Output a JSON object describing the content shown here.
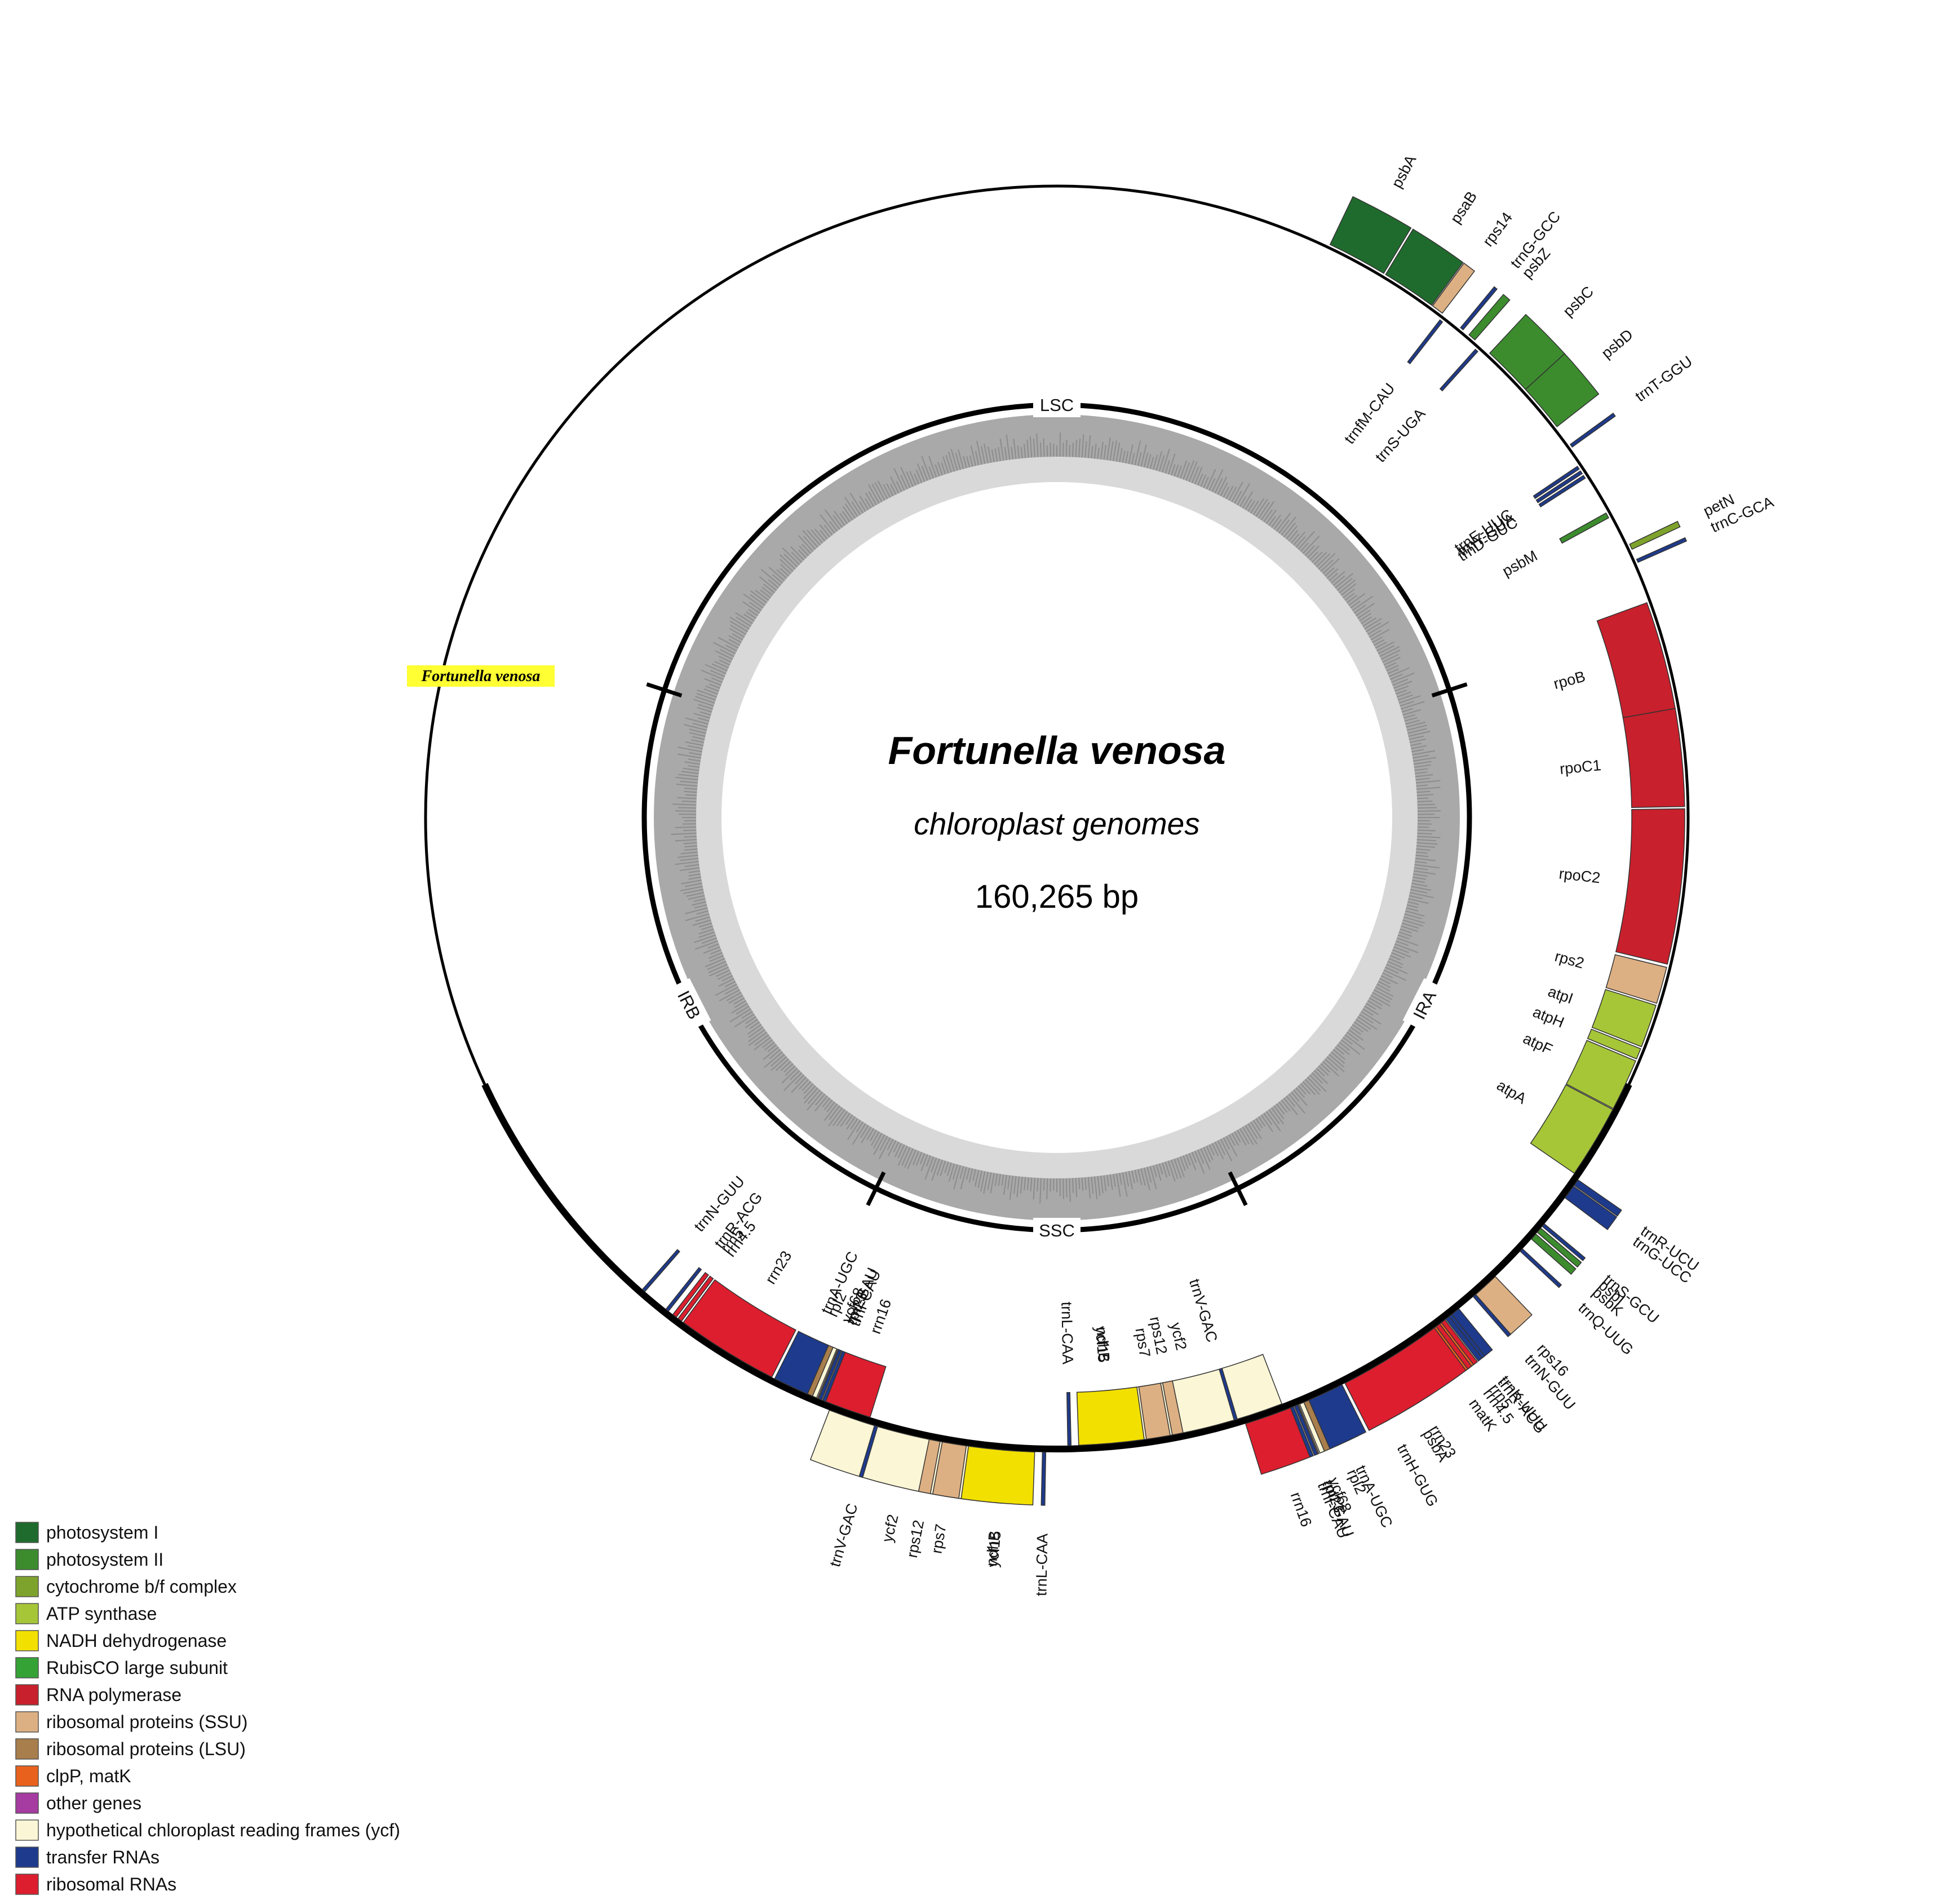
{
  "title": {
    "species": "Fortunella venosa",
    "subtitle": "chloroplast genomes",
    "length": "160,265 bp"
  },
  "callout": "Fortunella venosa",
  "colors": {
    "photosystem_I": "#1f6b2d",
    "photosystem_II": "#3c8c2e",
    "cytochrome": "#7ea32d",
    "atp": "#a6c638",
    "ndh": "#f2e000",
    "rubisco": "#35a235",
    "rnapol": "#c8202c",
    "ssu": "#ddb083",
    "lsu": "#a87e4c",
    "clpp": "#e9621d",
    "other": "#a63ba1",
    "ycf": "#fbf6d6",
    "trna": "#1e3a8c",
    "rrna": "#dc1e2e",
    "highlight": "#ffff33"
  },
  "regions": [
    {
      "id": "LSC",
      "label": "LSC",
      "angle": 0
    },
    {
      "id": "IRA",
      "label": "IRA",
      "angle": 117
    },
    {
      "id": "SSC",
      "label": "SSC",
      "angle": 180
    },
    {
      "id": "IRB",
      "label": "IRB",
      "angle": 243
    }
  ],
  "legend": [
    {
      "label": "photosystem I",
      "color": "#1f6b2d"
    },
    {
      "label": "photosystem II",
      "color": "#3c8c2e"
    },
    {
      "label": "cytochrome b/f complex",
      "color": "#7ea32d"
    },
    {
      "label": "ATP synthase",
      "color": "#a6c638"
    },
    {
      "label": "NADH dehydrogenase",
      "color": "#f2e000"
    },
    {
      "label": "RubisCO large subunit",
      "color": "#35a235"
    },
    {
      "label": "RNA polymerase",
      "color": "#c8202c"
    },
    {
      "label": "ribosomal proteins (SSU)",
      "color": "#ddb083"
    },
    {
      "label": "ribosomal proteins (LSU)",
      "color": "#a87e4c"
    },
    {
      "label": "clpP, matK",
      "color": "#e9621d"
    },
    {
      "label": "other genes",
      "color": "#a63ba1"
    },
    {
      "label": "hypothetical chloroplast reading frames (ycf)",
      "color": "#fbf6d6"
    },
    {
      "label": "transfer RNAs",
      "color": "#1e3a8c"
    },
    {
      "label": "ribosomal RNAs",
      "color": "#dc1e2e"
    }
  ],
  "genes": [
    {
      "name": "psbA",
      "start": 25.5,
      "end": 31.0,
      "strand": "out",
      "cat": "photosystem_I"
    },
    {
      "name": "psaB",
      "start": 31.2,
      "end": 36.2,
      "strand": "out",
      "cat": "photosystem_I"
    },
    {
      "name": "rps14",
      "start": 36.3,
      "end": 37.4,
      "strand": "out",
      "cat": "ssu"
    },
    {
      "name": "trnfM-CAU",
      "start": 37.6,
      "end": 37.9,
      "strand": "in",
      "cat": "trna"
    },
    {
      "name": "trnG-GCC",
      "start": 39.5,
      "end": 39.8,
      "strand": "out",
      "cat": "trna"
    },
    {
      "name": "psbZ",
      "start": 40.5,
      "end": 41.2,
      "strand": "out",
      "cat": "photosystem_II"
    },
    {
      "name": "trnS-UGA",
      "start": 41.8,
      "end": 42.1,
      "strand": "in",
      "cat": "trna"
    },
    {
      "name": "psbC",
      "start": 43.0,
      "end": 47.6,
      "strand": "out",
      "cat": "photosystem_II"
    },
    {
      "name": "psbD",
      "start": 47.6,
      "end": 52.0,
      "strand": "out",
      "cat": "photosystem_II"
    },
    {
      "name": "trnT-GGU",
      "start": 54.0,
      "end": 54.3,
      "strand": "out",
      "cat": "trna"
    },
    {
      "name": "trnE-UUC",
      "start": 56.0,
      "end": 56.3,
      "strand": "in",
      "cat": "trna"
    },
    {
      "name": "trnY-GUA",
      "start": 56.5,
      "end": 56.8,
      "strand": "in",
      "cat": "trna"
    },
    {
      "name": "trnD-GUC",
      "start": 57.0,
      "end": 57.3,
      "strand": "in",
      "cat": "trna"
    },
    {
      "name": "psbM",
      "start": 61.0,
      "end": 61.5,
      "strand": "in",
      "cat": "photosystem_II"
    },
    {
      "name": "petN",
      "start": 64.5,
      "end": 65.0,
      "strand": "out",
      "cat": "cytochrome"
    },
    {
      "name": "trnC-GCA",
      "start": 66.0,
      "end": 66.3,
      "strand": "out",
      "cat": "trna"
    },
    {
      "name": "rpoB",
      "start": 70.0,
      "end": 80.0,
      "strand": "in",
      "cat": "rnapol"
    },
    {
      "name": "rpoC1",
      "start": 80.0,
      "end": 89.0,
      "strand": "in",
      "cat": "rnapol"
    },
    {
      "name": "rpoC2",
      "start": 89.2,
      "end": 103.5,
      "strand": "in",
      "cat": "rnapol"
    },
    {
      "name": "rps2",
      "start": 103.8,
      "end": 107.2,
      "strand": "in",
      "cat": "ssu"
    },
    {
      "name": "atpI",
      "start": 107.4,
      "end": 111.4,
      "strand": "in",
      "cat": "atp"
    },
    {
      "name": "atpH",
      "start": 111.6,
      "end": 112.6,
      "strand": "in",
      "cat": "atp"
    },
    {
      "name": "atpF",
      "start": 112.8,
      "end": 117.6,
      "strand": "in",
      "cat": "atp"
    },
    {
      "name": "atpA",
      "start": 117.7,
      "end": 124.5,
      "strand": "in",
      "cat": "atp"
    },
    {
      "name": "trnR-UCU",
      "start": 124.8,
      "end": 125.4,
      "strand": "out",
      "cat": "trna"
    },
    {
      "name": "trnG-UCC",
      "start": 125.5,
      "end": 126.8,
      "strand": "out",
      "cat": "trna"
    },
    {
      "name": "trnS-GCU",
      "start": 129.8,
      "end": 130.1,
      "strand": "out",
      "cat": "trna"
    },
    {
      "name": "psbI",
      "start": 130.3,
      "end": 130.8,
      "strand": "out",
      "cat": "photosystem_II"
    },
    {
      "name": "psbK",
      "start": 131.0,
      "end": 131.6,
      "strand": "out",
      "cat": "photosystem_II"
    },
    {
      "name": "trnQ-UUG",
      "start": 132.8,
      "end": 133.1,
      "strand": "out",
      "cat": "trna"
    },
    {
      "name": "rps16",
      "start": 136.3,
      "end": 138.8,
      "strand": "out",
      "cat": "ssu"
    },
    {
      "name": "trnK-UUU",
      "start": 140.7,
      "end": 142.2,
      "strand": "out",
      "cat": "trna"
    },
    {
      "name": "matK",
      "start": 142.4,
      "end": 146.6,
      "strand": "out",
      "cat": "clpp"
    },
    {
      "name": "psbA",
      "start": 147.2,
      "end": 150.6,
      "strand": "out",
      "cat": "photosystem_II"
    },
    {
      "name": "trnH-GUG",
      "start": 151.1,
      "end": 151.4,
      "strand": "out",
      "cat": "trna"
    },
    {
      "name": "rpl2",
      "start": 154.0,
      "end": 157.4,
      "strand": "out",
      "cat": "lsu"
    },
    {
      "name": "rpl23",
      "start": 157.6,
      "end": 158.0,
      "strand": "out",
      "cat": "lsu"
    },
    {
      "name": "trnI-CAU",
      "start": 158.1,
      "end": 158.4,
      "strand": "out",
      "cat": "trna"
    },
    {
      "name": "ycf2",
      "start": 159.0,
      "end": 174.6,
      "strand": "in",
      "cat": "ycf"
    },
    {
      "name": "ycf15",
      "start": 174.8,
      "end": 175.4,
      "strand": "in",
      "cat": "ycf"
    },
    {
      "name": "trnL-CAA",
      "start": 181.0,
      "end": 181.3,
      "strand": "out",
      "cat": "trna"
    },
    {
      "name": "ndhB",
      "start": 182.0,
      "end": 188.0,
      "strand": "out",
      "cat": "ndh"
    },
    {
      "name": "rps7",
      "start": 188.2,
      "end": 190.4,
      "strand": "out",
      "cat": "ssu"
    },
    {
      "name": "rps12",
      "start": 190.6,
      "end": 191.6,
      "strand": "out",
      "cat": "ssu"
    },
    {
      "name": "trnV-GAC",
      "start": 196.4,
      "end": 196.7,
      "strand": "out",
      "cat": "trna"
    },
    {
      "name": "rrn16",
      "start": 197.3,
      "end": 201.6,
      "strand": "in",
      "cat": "rrna"
    },
    {
      "name": "trnI-GAU",
      "start": 202.0,
      "end": 202.3,
      "strand": "in",
      "cat": "trna"
    },
    {
      "name": "ycf68",
      "start": 202.5,
      "end": 202.9,
      "strand": "in",
      "cat": "ycf"
    },
    {
      "name": "trnA-UGC",
      "start": 203.4,
      "end": 206.7,
      "strand": "in",
      "cat": "trna"
    },
    {
      "name": "rrn23",
      "start": 207.0,
      "end": 216.5,
      "strand": "in",
      "cat": "rrna"
    },
    {
      "name": "rrn4.5",
      "start": 216.7,
      "end": 217.1,
      "strand": "in",
      "cat": "rrna"
    },
    {
      "name": "rrn5",
      "start": 217.3,
      "end": 217.7,
      "strand": "in",
      "cat": "rrna"
    },
    {
      "name": "trnR-ACG",
      "start": 218.2,
      "end": 218.5,
      "strand": "in",
      "cat": "trna"
    },
    {
      "name": "trnN-GUU",
      "start": 221.0,
      "end": 221.3,
      "strand": "in",
      "cat": "trna"
    }
  ]
}
